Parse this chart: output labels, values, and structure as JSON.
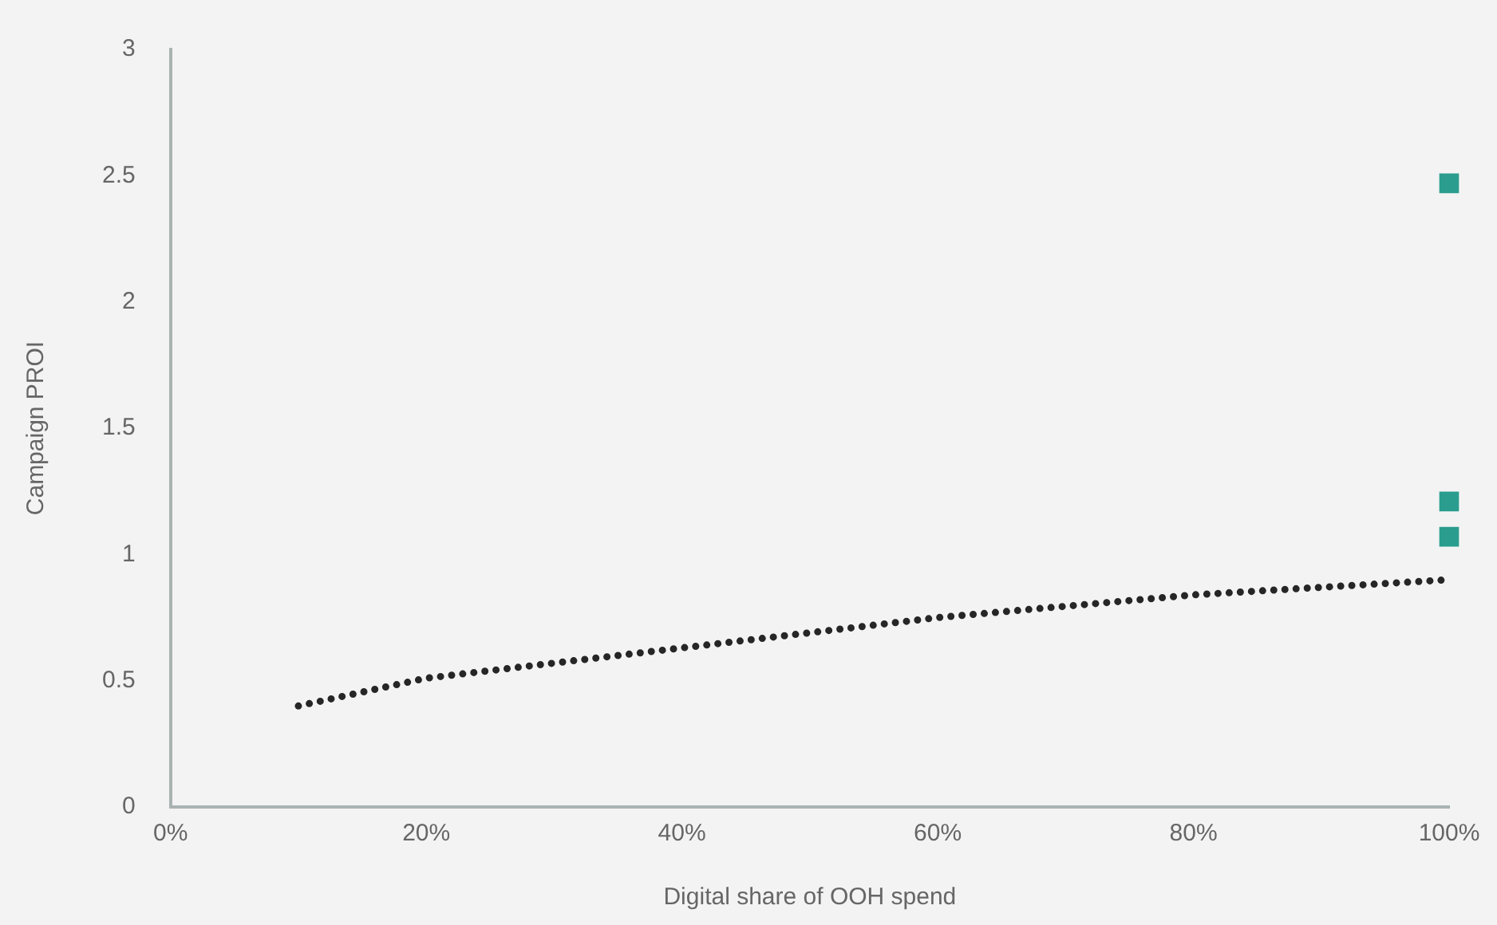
{
  "chart_data": {
    "type": "scatter",
    "xlabel": "Digital share of OOH spend",
    "ylabel": "Campaign PROI",
    "xlim": [
      0,
      100
    ],
    "xticks": [
      {
        "value": 0,
        "label": "0%"
      },
      {
        "value": 20,
        "label": "20%"
      },
      {
        "value": 40,
        "label": "40%"
      },
      {
        "value": 60,
        "label": "60%"
      },
      {
        "value": 80,
        "label": "80%"
      },
      {
        "value": 100,
        "label": "100%"
      }
    ],
    "ylim": [
      0,
      3
    ],
    "yticks": [
      0,
      0.5,
      1,
      1.5,
      2,
      2.5,
      3
    ],
    "grid": false,
    "legend": false,
    "marker": "square",
    "series": [
      {
        "color": "#2a9d8f",
        "x": [
          100,
          100,
          100
        ],
        "values": [
          2.47,
          1.21,
          1.07
        ]
      },
      {
        "type": "line",
        "color": "#262626",
        "line_style": "dotted",
        "marker": "none",
        "x": [
          10,
          20,
          40,
          60,
          80,
          100
        ],
        "values": [
          0.4,
          0.51,
          0.63,
          0.75,
          0.84,
          0.9
        ]
      }
    ]
  }
}
